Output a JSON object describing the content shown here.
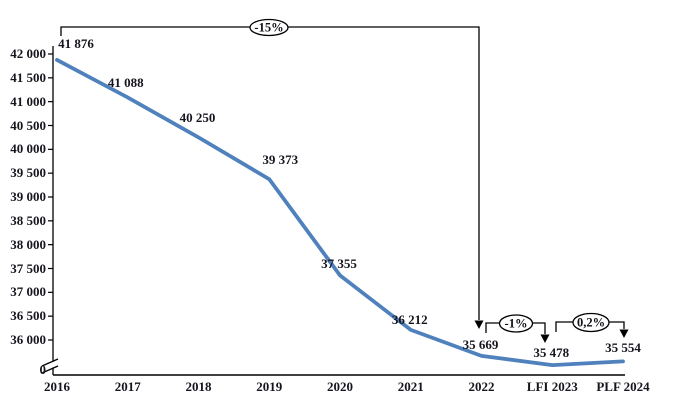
{
  "chart_data": {
    "type": "line",
    "title": "",
    "xlabel": "",
    "ylabel": "",
    "categories": [
      "2016",
      "2017",
      "2018",
      "2019",
      "2020",
      "2021",
      "2022",
      "LFI 2023",
      "PLF 2024"
    ],
    "values": [
      41876,
      41088,
      40250,
      39373,
      37355,
      36212,
      35669,
      35478,
      35554
    ],
    "point_labels": [
      "41 876",
      "41 088",
      "40 250",
      "39 373",
      "37 355",
      "36 212",
      "35 669",
      "35 478",
      "35 554"
    ],
    "ytick_values": [
      42000,
      41500,
      41000,
      40500,
      40000,
      39500,
      39000,
      38500,
      38000,
      37500,
      37000,
      36500,
      36000
    ],
    "ytick_labels": [
      "42 000",
      "41 500",
      "41 000",
      "40 500",
      "40 000",
      "39 500",
      "39 000",
      "38 500",
      "38 000",
      "37 500",
      "37 000",
      "36 500",
      "36 000"
    ],
    "zero_label": "0",
    "axis_break": true,
    "ylim_display": [
      36000,
      42000
    ],
    "grid": false,
    "legend": "none",
    "annotations": [
      {
        "label": "-15%",
        "from": "2016",
        "to": "2022"
      },
      {
        "label": "-1%",
        "from": "2022",
        "to": "LFI 2023"
      },
      {
        "label": "0,2%",
        "from": "LFI 2023",
        "to": "PLF 2024"
      }
    ],
    "line_color": "#4f81bd",
    "axis_color": "#000000",
    "text_color": "#15151e",
    "bubble_fill": "#ffffff",
    "bubble_stroke": "#000000"
  }
}
